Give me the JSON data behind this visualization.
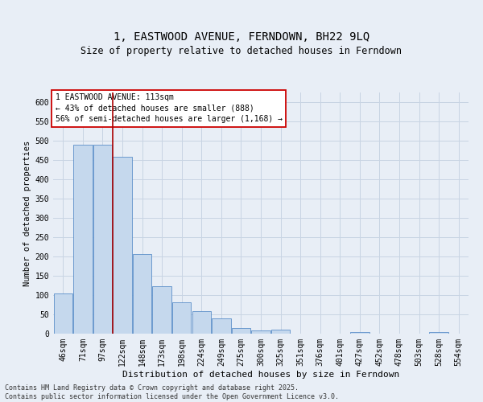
{
  "title": "1, EASTWOOD AVENUE, FERNDOWN, BH22 9LQ",
  "subtitle": "Size of property relative to detached houses in Ferndown",
  "xlabel": "Distribution of detached houses by size in Ferndown",
  "ylabel": "Number of detached properties",
  "categories": [
    "46sqm",
    "71sqm",
    "97sqm",
    "122sqm",
    "148sqm",
    "173sqm",
    "198sqm",
    "224sqm",
    "249sqm",
    "275sqm",
    "300sqm",
    "325sqm",
    "351sqm",
    "376sqm",
    "401sqm",
    "427sqm",
    "452sqm",
    "478sqm",
    "503sqm",
    "528sqm",
    "554sqm"
  ],
  "values": [
    105,
    490,
    490,
    458,
    207,
    123,
    82,
    58,
    39,
    14,
    8,
    10,
    0,
    0,
    0,
    5,
    0,
    0,
    0,
    5,
    0
  ],
  "bar_color": "#c5d8ed",
  "bar_edge_color": "#5b8fc9",
  "grid_color": "#c8d4e3",
  "background_color": "#e8eef6",
  "vline_color": "#aa0000",
  "annotation_title": "1 EASTWOOD AVENUE: 113sqm",
  "annotation_line1": "← 43% of detached houses are smaller (888)",
  "annotation_line2": "56% of semi-detached houses are larger (1,168) →",
  "annotation_box_color": "#ffffff",
  "annotation_box_edge": "#cc0000",
  "footer_line1": "Contains HM Land Registry data © Crown copyright and database right 2025.",
  "footer_line2": "Contains public sector information licensed under the Open Government Licence v3.0.",
  "ylim": [
    0,
    625
  ],
  "yticks": [
    0,
    50,
    100,
    150,
    200,
    250,
    300,
    350,
    400,
    450,
    500,
    550,
    600
  ],
  "title_fontsize": 10,
  "subtitle_fontsize": 8.5,
  "axis_label_fontsize": 7.5,
  "tick_fontsize": 7,
  "annotation_fontsize": 7,
  "footer_fontsize": 6
}
